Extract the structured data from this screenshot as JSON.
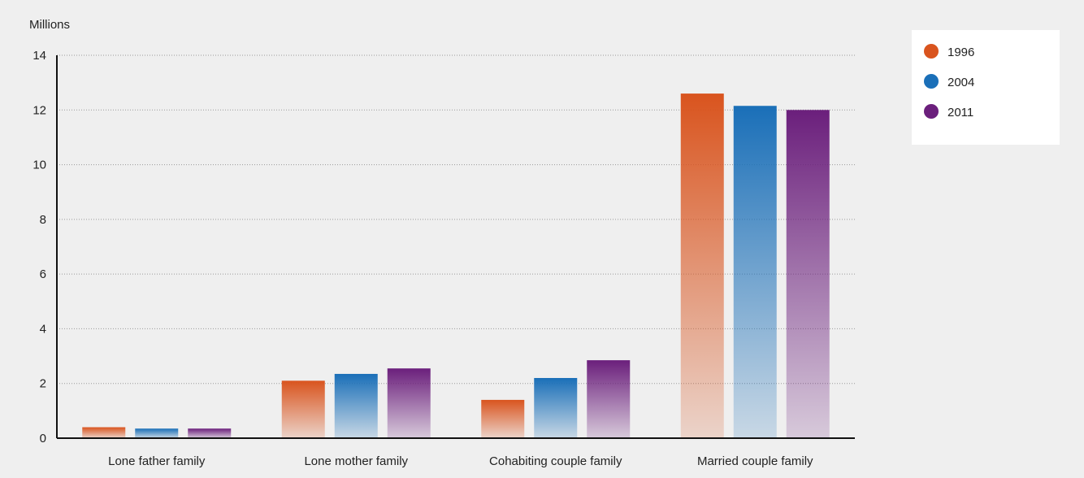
{
  "chart_data": {
    "type": "bar",
    "ylabel": "Millions",
    "ylim": [
      0,
      14
    ],
    "yticks": [
      0,
      2,
      4,
      6,
      8,
      10,
      12,
      14
    ],
    "grid": true,
    "legend_position": "top-right",
    "categories": [
      "Lone father family",
      "Lone mother family",
      "Cohabiting couple family",
      "Married couple family"
    ],
    "series": [
      {
        "name": "1996",
        "color": "#d9541e",
        "values": [
          0.4,
          2.1,
          1.4,
          12.6
        ]
      },
      {
        "name": "2004",
        "color": "#1a6fb8",
        "values": [
          0.35,
          2.35,
          2.2,
          12.15
        ]
      },
      {
        "name": "2011",
        "color": "#6b1f7c",
        "values": [
          0.35,
          2.55,
          2.85,
          12.0
        ]
      }
    ]
  }
}
